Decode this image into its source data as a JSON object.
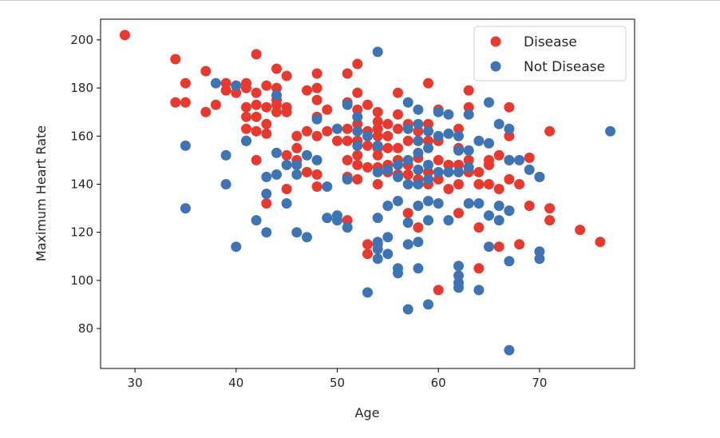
{
  "chart_data": {
    "type": "scatter",
    "xlabel": "Age",
    "ylabel": "Maximum Heart Rate",
    "xlim": [
      26.6,
      79.4
    ],
    "ylim": [
      63.4,
      208.6
    ],
    "xticks": [
      30,
      40,
      50,
      60,
      70
    ],
    "yticks": [
      80,
      100,
      120,
      140,
      160,
      180,
      200
    ],
    "grid": false,
    "legend_position": "top-right",
    "series": [
      {
        "name": "Disease",
        "color": "#e8392f",
        "points": [
          [
            29,
            202
          ],
          [
            34,
            192
          ],
          [
            34,
            174
          ],
          [
            35,
            182
          ],
          [
            35,
            174
          ],
          [
            37,
            187
          ],
          [
            37,
            170
          ],
          [
            38,
            173
          ],
          [
            39,
            182
          ],
          [
            39,
            179
          ],
          [
            40,
            181
          ],
          [
            40,
            178
          ],
          [
            41,
            182
          ],
          [
            41,
            180
          ],
          [
            41,
            172
          ],
          [
            41,
            168
          ],
          [
            41,
            163
          ],
          [
            41,
            158
          ],
          [
            42,
            194
          ],
          [
            42,
            178
          ],
          [
            42,
            173
          ],
          [
            42,
            168
          ],
          [
            42,
            162
          ],
          [
            42,
            150
          ],
          [
            43,
            181
          ],
          [
            43,
            172
          ],
          [
            43,
            165
          ],
          [
            43,
            161
          ],
          [
            43,
            132
          ],
          [
            44,
            188
          ],
          [
            44,
            180
          ],
          [
            44,
            175
          ],
          [
            44,
            173
          ],
          [
            44,
            170
          ],
          [
            45,
            185
          ],
          [
            45,
            172
          ],
          [
            45,
            170
          ],
          [
            45,
            152
          ],
          [
            45,
            138
          ],
          [
            46,
            160
          ],
          [
            46,
            155
          ],
          [
            46,
            150
          ],
          [
            47,
            179
          ],
          [
            47,
            162
          ],
          [
            47,
            145
          ],
          [
            48,
            186
          ],
          [
            48,
            180
          ],
          [
            48,
            175
          ],
          [
            48,
            168
          ],
          [
            48,
            160
          ],
          [
            48,
            144
          ],
          [
            48,
            139
          ],
          [
            49,
            171
          ],
          [
            49,
            162
          ],
          [
            50,
            158
          ],
          [
            50,
            163
          ],
          [
            51,
            186
          ],
          [
            51,
            174
          ],
          [
            51,
            163
          ],
          [
            51,
            158
          ],
          [
            51,
            150
          ],
          [
            51,
            143
          ],
          [
            51,
            125
          ],
          [
            52,
            190
          ],
          [
            52,
            178
          ],
          [
            52,
            171
          ],
          [
            52,
            165
          ],
          [
            52,
            158
          ],
          [
            52,
            152
          ],
          [
            52,
            148
          ],
          [
            52,
            142
          ],
          [
            53,
            173
          ],
          [
            53,
            162
          ],
          [
            53,
            156
          ],
          [
            53,
            147
          ],
          [
            53,
            115
          ],
          [
            53,
            111
          ],
          [
            54,
            170
          ],
          [
            54,
            166
          ],
          [
            54,
            163
          ],
          [
            54,
            160
          ],
          [
            54,
            155
          ],
          [
            54,
            152
          ],
          [
            54,
            147
          ],
          [
            54,
            140
          ],
          [
            54,
            115
          ],
          [
            55,
            165
          ],
          [
            55,
            160
          ],
          [
            55,
            155
          ],
          [
            55,
            148
          ],
          [
            55,
            145
          ],
          [
            56,
            178
          ],
          [
            56,
            169
          ],
          [
            56,
            163
          ],
          [
            56,
            155
          ],
          [
            56,
            150
          ],
          [
            56,
            144
          ],
          [
            57,
            165
          ],
          [
            57,
            158
          ],
          [
            57,
            148
          ],
          [
            57,
            144
          ],
          [
            57,
            128
          ],
          [
            58,
            162
          ],
          [
            58,
            158
          ],
          [
            58,
            151
          ],
          [
            58,
            142
          ],
          [
            58,
            122
          ],
          [
            59,
            182
          ],
          [
            59,
            165
          ],
          [
            59,
            158
          ],
          [
            59,
            145
          ],
          [
            59,
            140
          ],
          [
            60,
            171
          ],
          [
            60,
            158
          ],
          [
            60,
            150
          ],
          [
            60,
            142
          ],
          [
            60,
            96
          ],
          [
            61,
            148
          ],
          [
            61,
            138
          ],
          [
            62,
            163
          ],
          [
            62,
            155
          ],
          [
            62,
            148
          ],
          [
            62,
            140
          ],
          [
            62,
            128
          ],
          [
            63,
            179
          ],
          [
            63,
            172
          ],
          [
            63,
            150
          ],
          [
            63,
            145
          ],
          [
            64,
            145
          ],
          [
            64,
            140
          ],
          [
            64,
            122
          ],
          [
            64,
            105
          ],
          [
            65,
            150
          ],
          [
            65,
            148
          ],
          [
            65,
            140
          ],
          [
            66,
            152
          ],
          [
            66,
            138
          ],
          [
            66,
            114
          ],
          [
            67,
            172
          ],
          [
            67,
            160
          ],
          [
            67,
            150
          ],
          [
            67,
            142
          ],
          [
            67,
            129
          ],
          [
            68,
            140
          ],
          [
            68,
            115
          ],
          [
            69,
            151
          ],
          [
            69,
            131
          ],
          [
            70,
            143
          ],
          [
            71,
            162
          ],
          [
            71,
            130
          ],
          [
            71,
            125
          ],
          [
            74,
            121
          ],
          [
            76,
            116
          ]
        ]
      },
      {
        "name": "Not Disease",
        "color": "#3e74b3",
        "points": [
          [
            35,
            156
          ],
          [
            35,
            130
          ],
          [
            38,
            182
          ],
          [
            39,
            152
          ],
          [
            39,
            140
          ],
          [
            40,
            181
          ],
          [
            40,
            114
          ],
          [
            41,
            158
          ],
          [
            42,
            125
          ],
          [
            43,
            143
          ],
          [
            43,
            136
          ],
          [
            43,
            120
          ],
          [
            44,
            177
          ],
          [
            44,
            153
          ],
          [
            44,
            144
          ],
          [
            45,
            148
          ],
          [
            45,
            132
          ],
          [
            46,
            148
          ],
          [
            46,
            144
          ],
          [
            46,
            120
          ],
          [
            47,
            118
          ],
          [
            47,
            152
          ],
          [
            48,
            167
          ],
          [
            48,
            150
          ],
          [
            49,
            139
          ],
          [
            49,
            126
          ],
          [
            50,
            163
          ],
          [
            50,
            127
          ],
          [
            50,
            125
          ],
          [
            51,
            173
          ],
          [
            51,
            142
          ],
          [
            51,
            122
          ],
          [
            52,
            162
          ],
          [
            52,
            168
          ],
          [
            52,
            156
          ],
          [
            53,
            160
          ],
          [
            53,
            95
          ],
          [
            54,
            195
          ],
          [
            54,
            156
          ],
          [
            54,
            145
          ],
          [
            54,
            126
          ],
          [
            54,
            116
          ],
          [
            54,
            113
          ],
          [
            54,
            109
          ],
          [
            55,
            146
          ],
          [
            55,
            131
          ],
          [
            55,
            118
          ],
          [
            55,
            111
          ],
          [
            56,
            148
          ],
          [
            56,
            143
          ],
          [
            56,
            133
          ],
          [
            56,
            105
          ],
          [
            56,
            103
          ],
          [
            57,
            174
          ],
          [
            57,
            163
          ],
          [
            57,
            150
          ],
          [
            57,
            140
          ],
          [
            57,
            124
          ],
          [
            57,
            115
          ],
          [
            57,
            88
          ],
          [
            58,
            171
          ],
          [
            58,
            165
          ],
          [
            58,
            158
          ],
          [
            58,
            153
          ],
          [
            58,
            146
          ],
          [
            58,
            140
          ],
          [
            58,
            131
          ],
          [
            58,
            116
          ],
          [
            58,
            105
          ],
          [
            59,
            162
          ],
          [
            59,
            155
          ],
          [
            59,
            148
          ],
          [
            59,
            142
          ],
          [
            59,
            133
          ],
          [
            59,
            125
          ],
          [
            59,
            90
          ],
          [
            60,
            170
          ],
          [
            60,
            160
          ],
          [
            60,
            145
          ],
          [
            60,
            132
          ],
          [
            61,
            169
          ],
          [
            61,
            161
          ],
          [
            61,
            145
          ],
          [
            61,
            125
          ],
          [
            62,
            160
          ],
          [
            62,
            154
          ],
          [
            62,
            145
          ],
          [
            62,
            106
          ],
          [
            62,
            102
          ],
          [
            62,
            99
          ],
          [
            62,
            97
          ],
          [
            63,
            169
          ],
          [
            63,
            154
          ],
          [
            63,
            147
          ],
          [
            63,
            132
          ],
          [
            64,
            158
          ],
          [
            64,
            132
          ],
          [
            64,
            96
          ],
          [
            65,
            174
          ],
          [
            65,
            157
          ],
          [
            65,
            127
          ],
          [
            65,
            114
          ],
          [
            66,
            165
          ],
          [
            66,
            131
          ],
          [
            66,
            125
          ],
          [
            67,
            163
          ],
          [
            67,
            150
          ],
          [
            67,
            129
          ],
          [
            67,
            108
          ],
          [
            67,
            71
          ],
          [
            68,
            150
          ],
          [
            69,
            146
          ],
          [
            70,
            143
          ],
          [
            70,
            112
          ],
          [
            70,
            109
          ],
          [
            77,
            162
          ]
        ]
      }
    ]
  }
}
